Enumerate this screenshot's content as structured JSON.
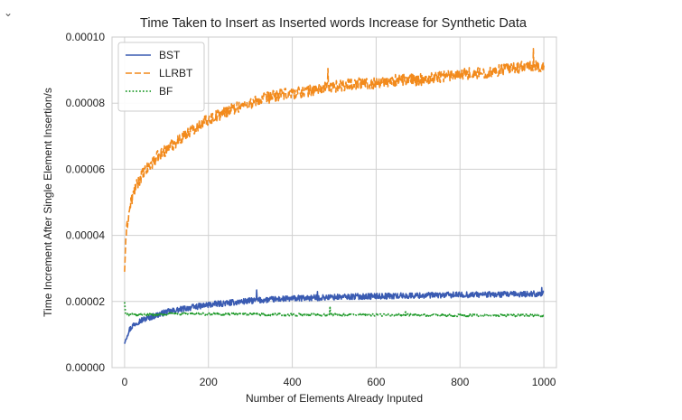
{
  "ui": {
    "collapse_icon": "chevron-down-icon",
    "collapse_glyph": "⌄"
  },
  "chart_data": {
    "type": "line",
    "title": "Time Taken to Insert as Inserted words Increase for Synthetic Data",
    "xlabel": "Number of Elements Already Inputed",
    "ylabel": "Time Increment After Single Element Insertion/s",
    "xlim": [
      -30,
      1030
    ],
    "ylim": [
      0,
      0.0001
    ],
    "xticks": [
      0,
      200,
      400,
      600,
      800,
      1000
    ],
    "xtick_labels": [
      "0",
      "200",
      "400",
      "600",
      "800",
      "1000"
    ],
    "yticks": [
      0,
      2e-05,
      4e-05,
      6e-05,
      8e-05,
      0.0001
    ],
    "ytick_labels": [
      "0.00000",
      "0.00002",
      "0.00004",
      "0.00006",
      "0.00008",
      "0.00010"
    ],
    "grid": true,
    "legend_position": "top-left",
    "series": [
      {
        "name": "BST",
        "color": "#3a5bb2",
        "style": "solid",
        "x": [
          0,
          5,
          10,
          20,
          30,
          50,
          75,
          100,
          150,
          200,
          250,
          300,
          350,
          400,
          450,
          500,
          550,
          600,
          650,
          700,
          750,
          800,
          850,
          900,
          950,
          1000
        ],
        "y": [
          7.2e-06,
          9.5e-06,
          1.12e-05,
          1.28e-05,
          1.38e-05,
          1.48e-05,
          1.58e-05,
          1.68e-05,
          1.8e-05,
          1.9e-05,
          1.96e-05,
          2.02e-05,
          2.06e-05,
          2.09e-05,
          2.11e-05,
          2.13e-05,
          2.15e-05,
          2.16e-05,
          2.17e-05,
          2.18e-05,
          2.19e-05,
          2.2e-05,
          2.21e-05,
          2.21e-05,
          2.22e-05,
          2.24e-05
        ]
      },
      {
        "name": "LLRBT",
        "color": "#f28a1c",
        "style": "dashed",
        "x": [
          0,
          3,
          8,
          15,
          25,
          40,
          60,
          80,
          100,
          130,
          160,
          200,
          250,
          300,
          350,
          400,
          450,
          500,
          550,
          600,
          650,
          700,
          750,
          800,
          850,
          900,
          950,
          1000
        ],
        "y": [
          2.9e-05,
          3.9e-05,
          4.5e-05,
          5e-05,
          5.4e-05,
          5.8e-05,
          6.1e-05,
          6.4e-05,
          6.6e-05,
          6.9e-05,
          7.2e-05,
          7.5e-05,
          7.8e-05,
          8e-05,
          8.2e-05,
          8.3e-05,
          8.4e-05,
          8.5e-05,
          8.6e-05,
          8.6e-05,
          8.7e-05,
          8.7e-05,
          8.8e-05,
          8.9e-05,
          8.9e-05,
          9e-05,
          9.1e-05,
          9.1e-05
        ]
      },
      {
        "name": "BF",
        "color": "#1f9a2a",
        "style": "dotted",
        "x": [
          0,
          2,
          5,
          10,
          50,
          100,
          200,
          300,
          400,
          500,
          600,
          700,
          800,
          900,
          1000
        ],
        "y": [
          1.98e-05,
          1.65e-05,
          1.6e-05,
          1.6e-05,
          1.6e-05,
          1.62e-05,
          1.62e-05,
          1.61e-05,
          1.6e-05,
          1.6e-05,
          1.59e-05,
          1.59e-05,
          1.58e-05,
          1.58e-05,
          1.58e-05
        ]
      }
    ],
    "spikes": [
      {
        "series": "BST",
        "x": [
          315,
          460,
          995
        ],
        "y": [
          2.35e-05,
          2.3e-05,
          2.42e-05
        ]
      },
      {
        "series": "LLRBT",
        "x": [
          485,
          975
        ],
        "y": [
          9.05e-05,
          9.65e-05
        ]
      },
      {
        "series": "BF",
        "x": [
          490,
          670
        ],
        "y": [
          1.82e-05,
          1.73e-05
        ]
      }
    ]
  }
}
